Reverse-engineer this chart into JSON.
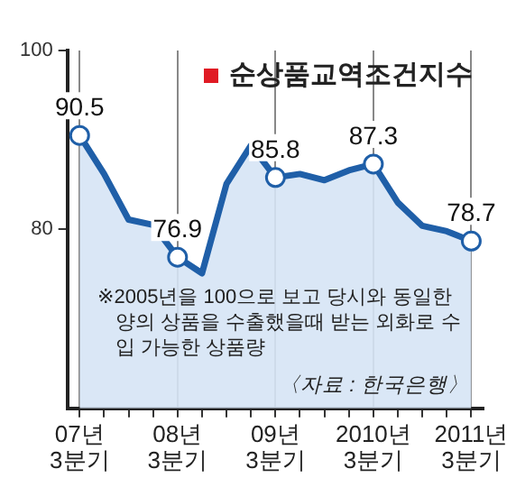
{
  "chart_data": {
    "type": "area",
    "title": "순상품교역조건지수",
    "categories": [
      "07년\n3분기",
      null,
      null,
      null,
      "08년\n3분기",
      null,
      null,
      null,
      "09년\n3분기",
      null,
      null,
      null,
      "2010년\n3분기",
      null,
      null,
      null,
      "2011년\n3분기"
    ],
    "series": [
      {
        "color": "#1f5fa8",
        "values": [
          90.5,
          86.2,
          81.1,
          80.5,
          76.9,
          75.1,
          85.1,
          89.4,
          85.8,
          86.2,
          85.5,
          86.6,
          87.3,
          83.0,
          80.4,
          79.8,
          78.7
        ],
        "value_labels": [
          "90.5",
          null,
          null,
          null,
          "76.9",
          null,
          null,
          null,
          "85.8",
          null,
          null,
          null,
          "87.3",
          null,
          null,
          null,
          "78.7"
        ]
      }
    ],
    "ylim": [
      60,
      100
    ],
    "yticks": [
      80,
      100
    ],
    "grid": "x",
    "legend": false,
    "annotations": [
      "※2005년을 100으로 보고 당시와 동일한 양의 상품을 수출했을때 받는 외화로 수입 가능한 상품량",
      "〈자료 : 한국은행〉"
    ]
  }
}
